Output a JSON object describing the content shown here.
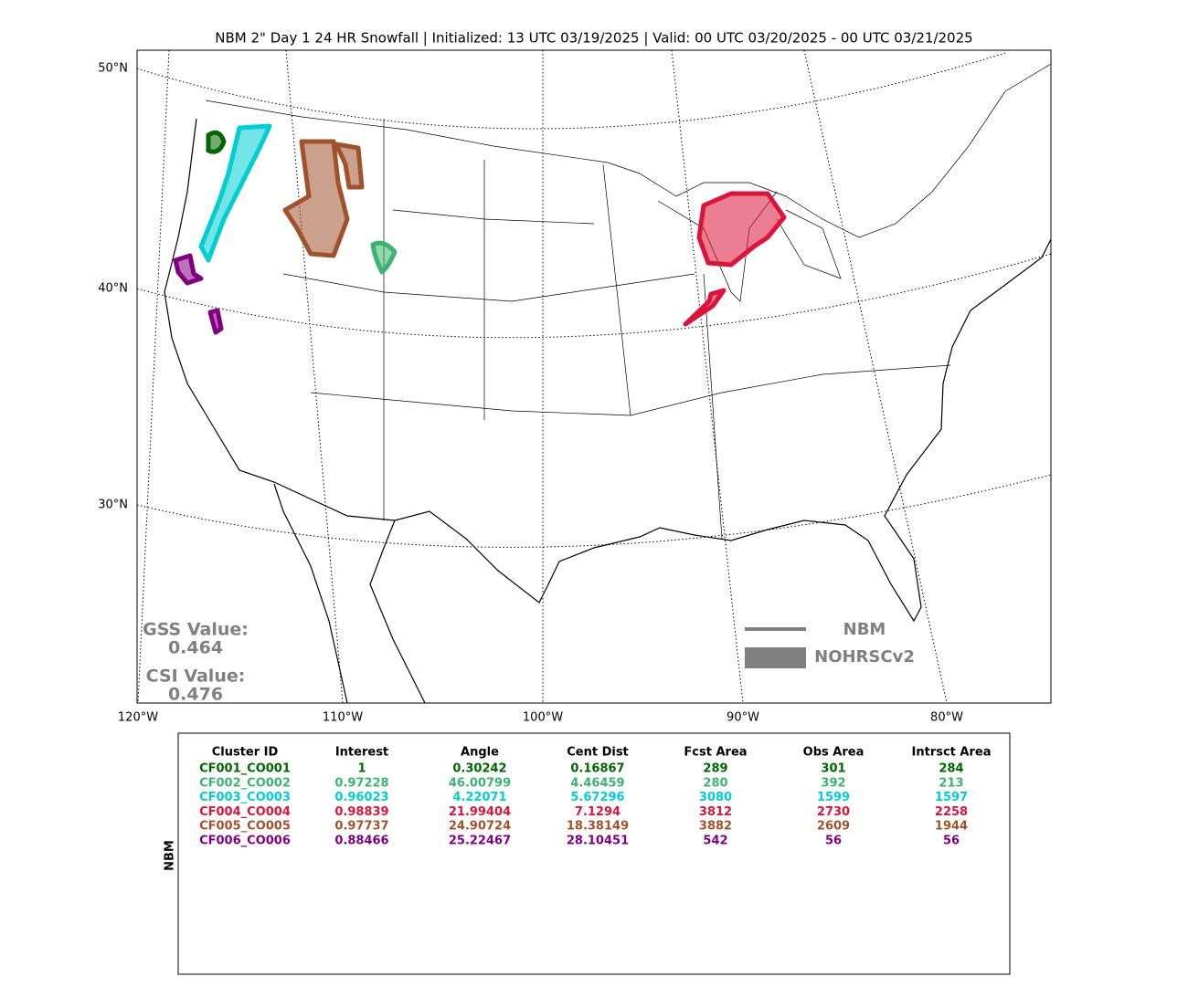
{
  "header": {
    "title": "NBM 2\" Day 1 24 HR Snowfall | Initialized: 13 UTC 03/19/2025 | Valid: 00 UTC 03/20/2025 - 00 UTC 03/21/2025"
  },
  "map": {
    "lat_labels": [
      "50°N",
      "40°N",
      "30°N"
    ],
    "lon_labels": [
      "120°W",
      "110°W",
      "100°W",
      "90°W",
      "80°W"
    ],
    "scores": {
      "gss_label": "GSS Value:",
      "gss": "0.464",
      "csi_label": "CSI Value:",
      "csi": "0.476",
      "color": "#808080"
    },
    "legend": {
      "color": "#808080",
      "items": [
        "NBM",
        "NOHRSCv2"
      ]
    }
  },
  "table": {
    "side_label": "NBM",
    "headers": [
      "Cluster ID",
      "Interest",
      "Angle",
      "Cent Dist",
      "Fcst Area",
      "Obs Area",
      "Intrsct Area"
    ],
    "rows": [
      {
        "color": "#006400",
        "cells": [
          "CF001_CO001",
          "1",
          "0.30242",
          "0.16867",
          "289",
          "301",
          "284"
        ]
      },
      {
        "color": "#3cb371",
        "cells": [
          "CF002_CO002",
          "0.97228",
          "46.00799",
          "4.46459",
          "280",
          "392",
          "213"
        ]
      },
      {
        "color": "#00ced1",
        "cells": [
          "CF003_CO003",
          "0.96023",
          "4.22071",
          "5.67296",
          "3080",
          "1599",
          "1597"
        ]
      },
      {
        "color": "#dc143c",
        "cells": [
          "CF004_CO004",
          "0.98839",
          "21.99404",
          "7.1294",
          "3812",
          "2730",
          "2258"
        ]
      },
      {
        "color": "#a0522d",
        "cells": [
          "CF005_CO005",
          "0.97737",
          "24.90724",
          "18.38149",
          "3882",
          "2609",
          "1944"
        ]
      },
      {
        "color": "#800080",
        "cells": [
          "CF006_CO006",
          "0.88466",
          "25.22467",
          "28.10451",
          "542",
          "56",
          "56"
        ]
      }
    ]
  }
}
